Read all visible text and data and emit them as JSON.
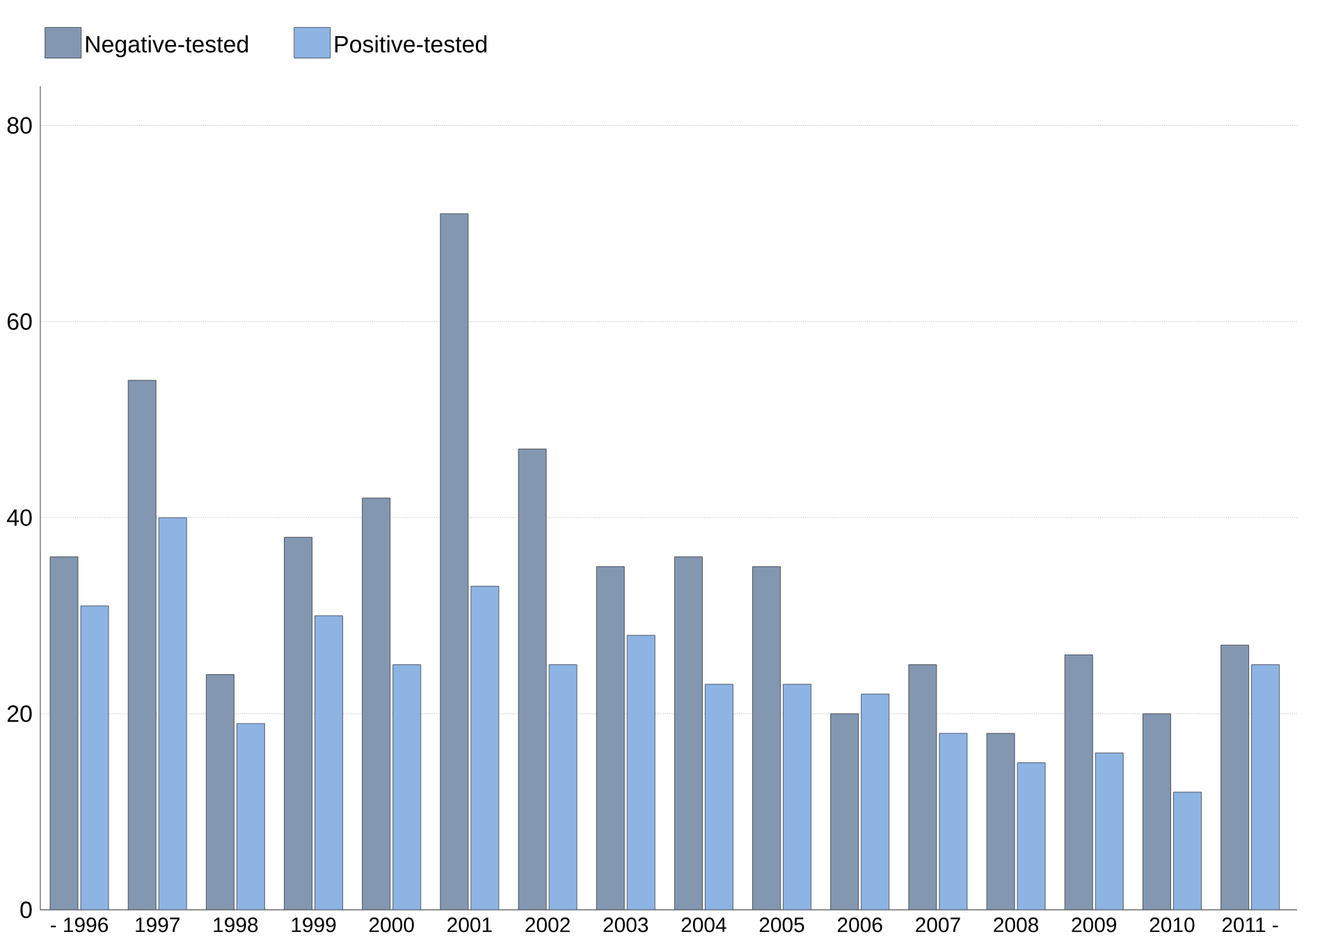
{
  "chart_data": {
    "type": "bar",
    "categories": [
      "- 1996",
      "1997",
      "1998",
      "1999",
      "2000",
      "2001",
      "2002",
      "2003",
      "2004",
      "2005",
      "2006",
      "2007",
      "2008",
      "2009",
      "2010",
      "2011 -"
    ],
    "series": [
      {
        "name": "Negative-tested",
        "color": "#8497b0",
        "values": [
          36,
          54,
          24,
          38,
          42,
          71,
          47,
          35,
          36,
          35,
          20,
          25,
          18,
          26,
          20,
          27
        ]
      },
      {
        "name": "Positive-tested",
        "color": "#8eb4e3",
        "values": [
          31,
          40,
          19,
          30,
          25,
          33,
          25,
          28,
          23,
          23,
          22,
          18,
          15,
          16,
          12,
          25
        ]
      }
    ],
    "ylim": [
      0,
      84
    ],
    "yticks": [
      0,
      20,
      40,
      60,
      80
    ],
    "grid": "y",
    "legend": "top left"
  }
}
